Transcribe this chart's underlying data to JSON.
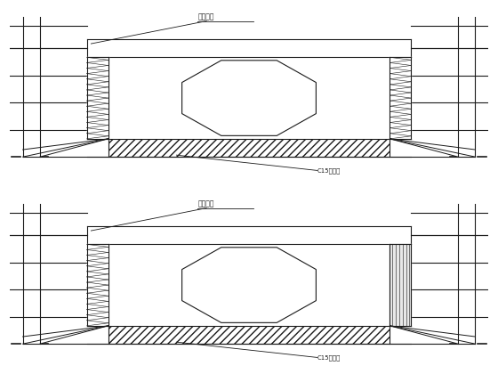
{
  "bg_color": "#ffffff",
  "line_color": "#1a1a1a",
  "label1": "龙骨钢模",
  "label2": "C15垫层桩",
  "fig_width": 5.6,
  "fig_height": 4.2,
  "dpi": 100
}
